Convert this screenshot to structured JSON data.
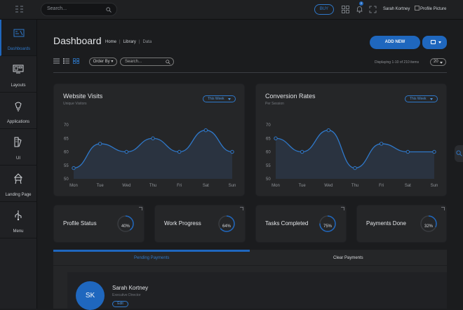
{
  "topbar": {
    "search_placeholder": "Search...",
    "pill_label": "BUY",
    "notification_count": "2",
    "user_name": "Sarah Kortney",
    "profile_alt": "Profile Picture"
  },
  "sidebar": {
    "items": [
      {
        "label": "Dashboards",
        "icon": "dashboard-icon",
        "active": true
      },
      {
        "label": "Layouts",
        "icon": "layouts-icon"
      },
      {
        "label": "Applications",
        "icon": "applications-icon"
      },
      {
        "label": "UI",
        "icon": "ui-icon"
      },
      {
        "label": "Landing Page",
        "icon": "landing-icon"
      },
      {
        "label": "Menu",
        "icon": "menu-icon"
      }
    ]
  },
  "header": {
    "title": "Dashboard",
    "breadcrumbs": [
      "Home",
      "Library",
      "Data"
    ],
    "add_new": "ADD NEW"
  },
  "toolbar": {
    "order_by": "Order By",
    "search_placeholder": "Search...",
    "display_text": "Displaying 1-10 of 210 items",
    "per_page": "20"
  },
  "charts": {
    "visits": {
      "title": "Website Visits",
      "subtitle": "Unique Visitors",
      "range": "This Week"
    },
    "conversion": {
      "title": "Conversion Rates",
      "subtitle": "Per Session",
      "range": "This Week"
    }
  },
  "chart_data": [
    {
      "type": "area",
      "title": "Website Visits",
      "subtitle": "Unique Visitors",
      "categories": [
        "Mon",
        "Tue",
        "Wed",
        "Thu",
        "Fri",
        "Sat",
        "Sun"
      ],
      "values": [
        54,
        63,
        60,
        65,
        60,
        68,
        60
      ],
      "ylim": [
        50,
        70
      ],
      "yticks": [
        50,
        55,
        60,
        65,
        70
      ]
    },
    {
      "type": "area",
      "title": "Conversion Rates",
      "subtitle": "Per Session",
      "categories": [
        "Mon",
        "Tue",
        "Wed",
        "Thu",
        "Fri",
        "Sat",
        "Sun"
      ],
      "values": [
        65,
        60,
        68,
        54,
        63,
        60,
        60
      ],
      "ylim": [
        50,
        70
      ],
      "yticks": [
        50,
        55,
        60,
        65,
        70
      ]
    }
  ],
  "stats": [
    {
      "title": "Profile Status",
      "value": "40%",
      "percent": 0.4
    },
    {
      "title": "Work Progress",
      "value": "64%",
      "percent": 0.64
    },
    {
      "title": "Tasks Completed",
      "value": "75%",
      "percent": 0.75
    },
    {
      "title": "Payments Done",
      "value": "32%",
      "percent": 0.32
    }
  ],
  "payments": {
    "tab_pending": "Pending Payments",
    "tab_clear": "Clear Payments",
    "person": {
      "initials": "SK",
      "name": "Sarah Kortney",
      "role": "Executive Director",
      "action": "Edit"
    }
  },
  "colors": {
    "accent": "#1f67be",
    "background": "#1b1c1e",
    "card": "#252628"
  }
}
